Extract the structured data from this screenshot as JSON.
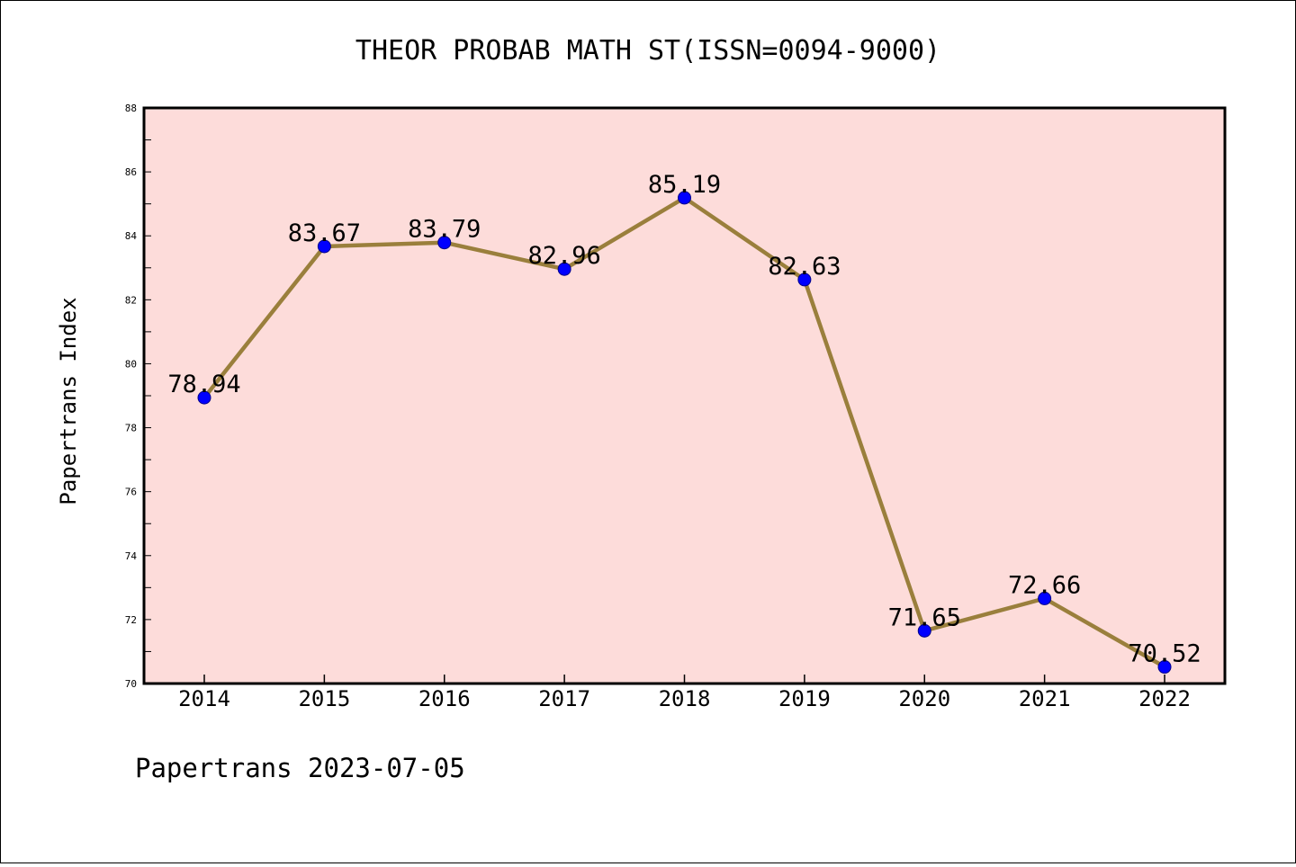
{
  "chart_data": {
    "type": "line",
    "title": "THEOR PROBAB MATH ST(ISSN=0094-9000)",
    "xlabel": "",
    "ylabel": "Papertrans Index",
    "footer": "Papertrans 2023-07-05",
    "categories": [
      "2014",
      "2015",
      "2016",
      "2017",
      "2018",
      "2019",
      "2020",
      "2021",
      "2022"
    ],
    "series": [
      {
        "values": [
          78.94,
          83.67,
          83.79,
          82.96,
          85.19,
          82.63,
          71.65,
          72.66,
          70.52
        ],
        "data_labels": [
          "78.94",
          "83.67",
          "83.79",
          "82.96",
          "85.19",
          "82.63",
          "71.65",
          "72.66",
          "70.52"
        ]
      }
    ],
    "ylim": [
      70,
      88
    ],
    "y_ticks": [
      "70",
      "72",
      "74",
      "76",
      "78",
      "80",
      "82",
      "84",
      "86",
      "88"
    ],
    "grid": false,
    "legend": "none",
    "colors": {
      "plot_background": "#FDDCDA",
      "line": "#9A7F3C",
      "marker": "#0000FF",
      "marker_edge": "#00008B",
      "frame": "#000000"
    }
  }
}
